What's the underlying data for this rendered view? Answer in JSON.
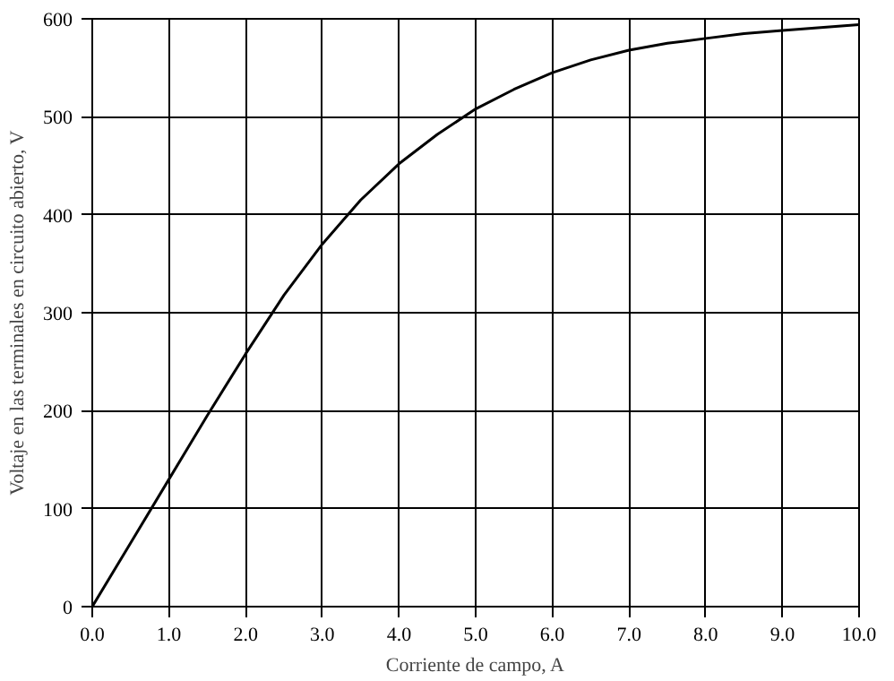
{
  "chart_data": {
    "type": "line",
    "xlabel": "Corriente de campo, A",
    "ylabel": "Voltaje en las terminales en circuito abierto, V",
    "x": [
      0,
      0.5,
      1.0,
      1.5,
      2.0,
      2.5,
      3.0,
      3.5,
      4.0,
      4.5,
      5.0,
      5.5,
      6.0,
      6.5,
      7.0,
      7.5,
      8.0,
      8.5,
      9.0,
      9.5,
      10.0
    ],
    "series": [
      {
        "color": "#000000",
        "values": [
          0,
          65,
          130,
          195,
          258,
          318,
          370,
          415,
          452,
          482,
          508,
          528,
          545,
          558,
          568,
          575,
          580,
          585,
          588,
          591,
          594
        ]
      }
    ],
    "xlim": [
      0,
      10
    ],
    "ylim": [
      0,
      600
    ],
    "xticks": [
      {
        "value": 0,
        "label": "0.0"
      },
      {
        "value": 1,
        "label": "1.0"
      },
      {
        "value": 2,
        "label": "2.0"
      },
      {
        "value": 3,
        "label": "3.0"
      },
      {
        "value": 4,
        "label": "4.0"
      },
      {
        "value": 5,
        "label": "5.0"
      },
      {
        "value": 6,
        "label": "6.0"
      },
      {
        "value": 7,
        "label": "7.0"
      },
      {
        "value": 8,
        "label": "8.0"
      },
      {
        "value": 9,
        "label": "9.0"
      },
      {
        "value": 10,
        "label": "10.0"
      }
    ],
    "yticks": [
      0,
      100,
      200,
      300,
      400,
      500,
      600
    ],
    "grid": true,
    "marker": "none",
    "line_style": "solid"
  }
}
